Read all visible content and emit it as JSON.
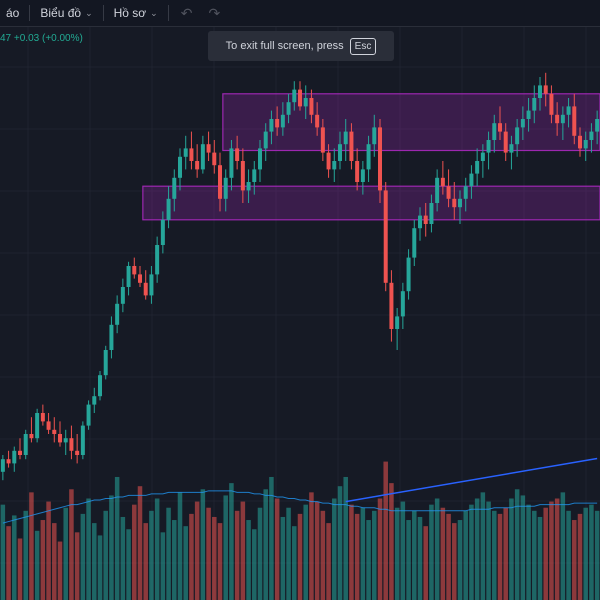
{
  "toolbar": {
    "partial_menu_label": "áo",
    "chart_menu_label": "Biểu đồ",
    "profile_menu_label": "Hồ sơ",
    "undo_icon": "undo-icon",
    "redo_icon": "redo-icon"
  },
  "price_line": {
    "partial_value": "47",
    "change": "+0.03 (+0.00%)"
  },
  "toast": {
    "message": "To exit full screen, press",
    "key": "Esc"
  },
  "colors": {
    "up": "#26a69a",
    "down": "#ef5350",
    "zone": "#9c27b0",
    "trendline": "#2962ff",
    "ma": "#2196f3",
    "grid": "#1f2330"
  },
  "chart_data": {
    "type": "candlestick",
    "candles": [
      [
        52,
        60,
        48,
        58
      ],
      [
        58,
        62,
        54,
        56
      ],
      [
        56,
        64,
        52,
        62
      ],
      [
        62,
        68,
        58,
        60
      ],
      [
        60,
        72,
        58,
        70
      ],
      [
        70,
        78,
        66,
        68
      ],
      [
        68,
        82,
        66,
        80
      ],
      [
        80,
        84,
        74,
        76
      ],
      [
        76,
        80,
        70,
        72
      ],
      [
        72,
        78,
        66,
        70
      ],
      [
        70,
        76,
        64,
        66
      ],
      [
        66,
        72,
        60,
        68
      ],
      [
        68,
        74,
        58,
        62
      ],
      [
        62,
        70,
        56,
        60
      ],
      [
        60,
        76,
        58,
        74
      ],
      [
        74,
        86,
        72,
        84
      ],
      [
        84,
        92,
        80,
        88
      ],
      [
        88,
        100,
        86,
        98
      ],
      [
        98,
        112,
        96,
        110
      ],
      [
        110,
        126,
        106,
        122
      ],
      [
        122,
        136,
        118,
        132
      ],
      [
        132,
        144,
        128,
        140
      ],
      [
        140,
        152,
        136,
        150
      ],
      [
        150,
        154,
        144,
        146
      ],
      [
        146,
        150,
        140,
        142
      ],
      [
        142,
        148,
        134,
        136
      ],
      [
        136,
        150,
        132,
        146
      ],
      [
        146,
        164,
        142,
        160
      ],
      [
        160,
        176,
        156,
        172
      ],
      [
        172,
        188,
        168,
        182
      ],
      [
        182,
        196,
        176,
        192
      ],
      [
        192,
        206,
        186,
        202
      ],
      [
        202,
        212,
        196,
        206
      ],
      [
        206,
        214,
        196,
        200
      ],
      [
        200,
        208,
        192,
        196
      ],
      [
        196,
        212,
        194,
        208
      ],
      [
        208,
        214,
        200,
        204
      ],
      [
        204,
        210,
        194,
        198
      ],
      [
        198,
        204,
        176,
        182
      ],
      [
        182,
        196,
        176,
        192
      ],
      [
        192,
        210,
        186,
        206
      ],
      [
        206,
        212,
        196,
        200
      ],
      [
        200,
        206,
        180,
        186
      ],
      [
        186,
        196,
        180,
        190
      ],
      [
        190,
        200,
        184,
        196
      ],
      [
        196,
        210,
        190,
        206
      ],
      [
        206,
        218,
        200,
        214
      ],
      [
        214,
        224,
        208,
        220
      ],
      [
        220,
        226,
        212,
        216
      ],
      [
        216,
        228,
        212,
        222
      ],
      [
        222,
        232,
        218,
        228
      ],
      [
        228,
        238,
        224,
        234
      ],
      [
        234,
        238,
        224,
        226
      ],
      [
        226,
        236,
        220,
        230
      ],
      [
        230,
        234,
        218,
        222
      ],
      [
        222,
        228,
        212,
        216
      ],
      [
        216,
        220,
        200,
        204
      ],
      [
        204,
        208,
        192,
        196
      ],
      [
        196,
        206,
        190,
        200
      ],
      [
        200,
        214,
        196,
        208
      ],
      [
        208,
        220,
        200,
        214
      ],
      [
        214,
        218,
        196,
        200
      ],
      [
        200,
        206,
        186,
        190
      ],
      [
        190,
        200,
        184,
        196
      ],
      [
        196,
        212,
        190,
        208
      ],
      [
        208,
        222,
        202,
        216
      ],
      [
        216,
        220,
        180,
        186
      ],
      [
        186,
        190,
        138,
        142
      ],
      [
        142,
        148,
        114,
        120
      ],
      [
        120,
        130,
        110,
        126
      ],
      [
        126,
        142,
        120,
        138
      ],
      [
        138,
        158,
        134,
        154
      ],
      [
        154,
        172,
        150,
        168
      ],
      [
        168,
        178,
        162,
        174
      ],
      [
        174,
        180,
        164,
        170
      ],
      [
        170,
        184,
        166,
        180
      ],
      [
        180,
        196,
        176,
        192
      ],
      [
        192,
        200,
        184,
        188
      ],
      [
        188,
        196,
        178,
        182
      ],
      [
        182,
        190,
        172,
        178
      ],
      [
        178,
        186,
        170,
        182
      ],
      [
        182,
        192,
        176,
        188
      ],
      [
        188,
        198,
        182,
        194
      ],
      [
        194,
        206,
        188,
        200
      ],
      [
        200,
        208,
        192,
        204
      ],
      [
        204,
        214,
        196,
        210
      ],
      [
        210,
        222,
        204,
        218
      ],
      [
        218,
        226,
        210,
        214
      ],
      [
        214,
        218,
        200,
        204
      ],
      [
        204,
        212,
        196,
        208
      ],
      [
        208,
        220,
        202,
        216
      ],
      [
        216,
        226,
        210,
        220
      ],
      [
        220,
        230,
        214,
        224
      ],
      [
        224,
        236,
        218,
        230
      ],
      [
        230,
        240,
        224,
        236
      ],
      [
        236,
        242,
        226,
        232
      ],
      [
        232,
        236,
        218,
        222
      ],
      [
        222,
        228,
        212,
        218
      ],
      [
        218,
        226,
        210,
        222
      ],
      [
        222,
        230,
        216,
        226
      ],
      [
        226,
        232,
        208,
        212
      ],
      [
        212,
        216,
        202,
        206
      ],
      [
        206,
        214,
        200,
        210
      ],
      [
        210,
        218,
        204,
        214
      ],
      [
        214,
        224,
        208,
        220
      ]
    ],
    "volumes": [
      62,
      48,
      55,
      40,
      58,
      70,
      45,
      52,
      64,
      50,
      38,
      60,
      72,
      44,
      56,
      66,
      50,
      42,
      58,
      68,
      80,
      54,
      46,
      62,
      74,
      50,
      58,
      66,
      44,
      60,
      52,
      70,
      48,
      56,
      64,
      72,
      60,
      54,
      50,
      68,
      76,
      58,
      64,
      52,
      46,
      60,
      72,
      80,
      66,
      54,
      60,
      48,
      56,
      62,
      70,
      64,
      58,
      50,
      66,
      74,
      80,
      62,
      56,
      60,
      52,
      58,
      66,
      90,
      76,
      60,
      64,
      52,
      58,
      54,
      48,
      62,
      66,
      60,
      56,
      50,
      52,
      58,
      62,
      66,
      70,
      64,
      58,
      56,
      60,
      66,
      72,
      68,
      62,
      58,
      54,
      60,
      64,
      66,
      70,
      58,
      52,
      56,
      60,
      62,
      58
    ],
    "ma": [
      50,
      51,
      52,
      53,
      54,
      55,
      56,
      57,
      58,
      59,
      60,
      61,
      62,
      62,
      63,
      64,
      65,
      65,
      66,
      66,
      67,
      67,
      68,
      68,
      68,
      68,
      69,
      69,
      69,
      70,
      70,
      70,
      70,
      70,
      70,
      70,
      71,
      71,
      71,
      71,
      71,
      70,
      70,
      70,
      69,
      69,
      68,
      68,
      67,
      67,
      66,
      66,
      65,
      65,
      64,
      64,
      63,
      63,
      62,
      62,
      62,
      61,
      61,
      60,
      60,
      60,
      59,
      59,
      58,
      58,
      58,
      58,
      58,
      58,
      58,
      58,
      58,
      58,
      58,
      58,
      58,
      58,
      59,
      59,
      59,
      59,
      60,
      60,
      60,
      60,
      61,
      61,
      61,
      61,
      62,
      62,
      62,
      62,
      62,
      62,
      63,
      63,
      63,
      63,
      63
    ],
    "zones": [
      {
        "from_index": 39,
        "to_index": 104,
        "low": 205,
        "high": 232
      },
      {
        "from_index": 25,
        "to_index": 104,
        "low": 172,
        "high": 188
      }
    ],
    "trendline": [
      [
        60,
        64
      ],
      [
        104,
        92
      ]
    ],
    "xlim": [
      0,
      104
    ],
    "ylim": [
      40,
      240
    ]
  }
}
